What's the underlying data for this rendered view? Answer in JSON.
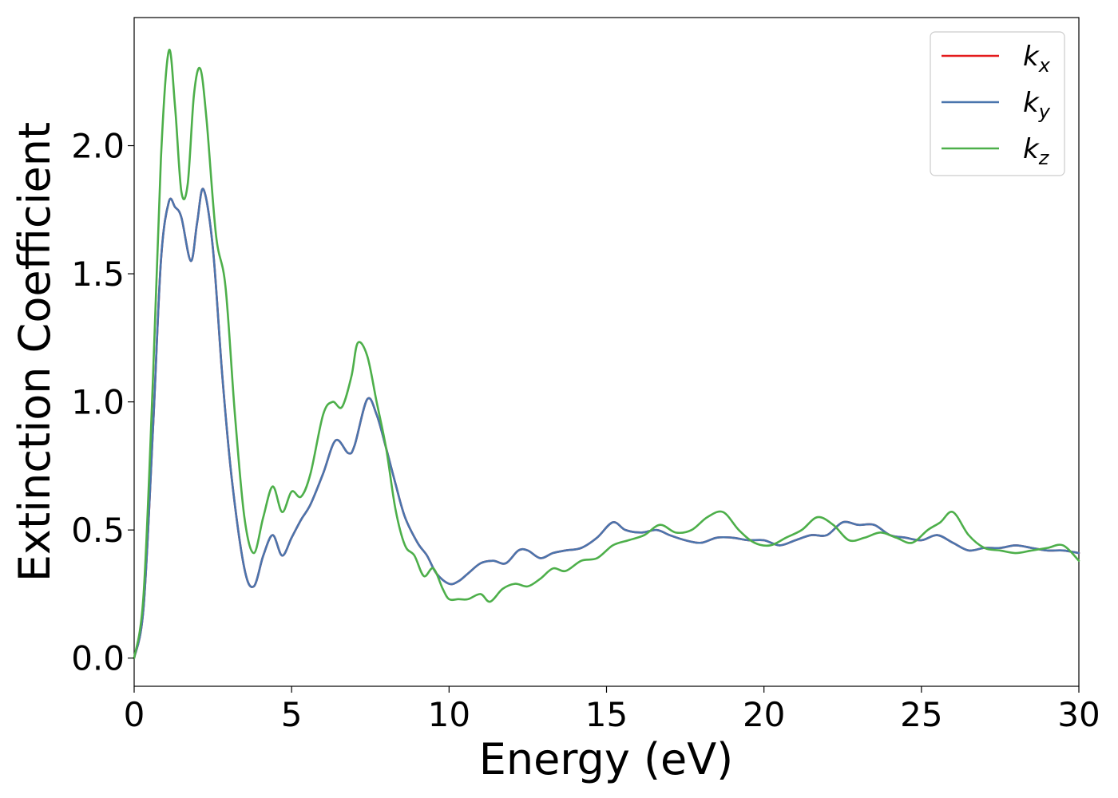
{
  "chart_data": {
    "type": "line",
    "title": "",
    "xlabel": "Energy (eV)",
    "ylabel": "Extinction Coefficient",
    "xlim": [
      0,
      30
    ],
    "ylim": [
      -0.11,
      2.5
    ],
    "xticks": [
      0,
      5,
      10,
      15,
      20,
      25,
      30
    ],
    "xtick_labels": [
      "0",
      "5",
      "10",
      "15",
      "20",
      "25",
      "30"
    ],
    "yticks": [
      0.0,
      0.5,
      1.0,
      1.5,
      2.0
    ],
    "ytick_labels": [
      "0.0",
      "0.5",
      "1.0",
      "1.5",
      "2.0"
    ],
    "grid": false,
    "legend_position": "top-right",
    "series": [
      {
        "name": "k_x",
        "label_base": "k",
        "label_sub": "x",
        "color": "#e41a1c",
        "x": [
          0,
          0.3,
          0.6,
          0.85,
          1.1,
          1.3,
          1.5,
          1.8,
          2.0,
          2.2,
          2.5,
          2.8,
          3.1,
          3.5,
          3.8,
          4.1,
          4.4,
          4.7,
          5.0,
          5.3,
          5.6,
          6.0,
          6.4,
          6.8,
          7.0,
          7.4,
          7.7,
          8.0,
          8.3,
          8.6,
          9.0,
          9.3,
          9.6,
          10.0,
          10.3,
          10.6,
          11.0,
          11.4,
          11.8,
          12.2,
          12.5,
          12.9,
          13.3,
          13.7,
          14.2,
          14.7,
          15.2,
          15.6,
          16.1,
          16.6,
          17.0,
          17.5,
          18.0,
          18.5,
          19.0,
          19.5,
          20.0,
          20.5,
          21.0,
          21.5,
          22.0,
          22.5,
          23.0,
          23.5,
          24.0,
          24.5,
          25.0,
          25.5,
          26.0,
          26.5,
          27.0,
          27.5,
          28.0,
          28.5,
          29.0,
          29.5,
          30.0
        ],
        "values": [
          0.0,
          0.2,
          0.9,
          1.55,
          1.78,
          1.76,
          1.72,
          1.55,
          1.7,
          1.83,
          1.6,
          1.1,
          0.7,
          0.35,
          0.28,
          0.4,
          0.48,
          0.4,
          0.47,
          0.54,
          0.6,
          0.72,
          0.85,
          0.8,
          0.83,
          1.01,
          0.95,
          0.82,
          0.68,
          0.55,
          0.45,
          0.4,
          0.33,
          0.29,
          0.3,
          0.33,
          0.37,
          0.38,
          0.37,
          0.42,
          0.42,
          0.39,
          0.41,
          0.42,
          0.43,
          0.47,
          0.53,
          0.5,
          0.49,
          0.5,
          0.48,
          0.46,
          0.45,
          0.47,
          0.47,
          0.46,
          0.46,
          0.44,
          0.46,
          0.48,
          0.48,
          0.53,
          0.52,
          0.52,
          0.48,
          0.47,
          0.46,
          0.48,
          0.45,
          0.42,
          0.43,
          0.43,
          0.44,
          0.43,
          0.42,
          0.42,
          0.41
        ]
      },
      {
        "name": "k_y",
        "label_base": "k",
        "label_sub": "y",
        "color": "#4a75ad",
        "x": [
          0,
          0.3,
          0.6,
          0.85,
          1.1,
          1.3,
          1.5,
          1.8,
          2.0,
          2.2,
          2.5,
          2.8,
          3.1,
          3.5,
          3.8,
          4.1,
          4.4,
          4.7,
          5.0,
          5.3,
          5.6,
          6.0,
          6.4,
          6.8,
          7.0,
          7.4,
          7.7,
          8.0,
          8.3,
          8.6,
          9.0,
          9.3,
          9.6,
          10.0,
          10.3,
          10.6,
          11.0,
          11.4,
          11.8,
          12.2,
          12.5,
          12.9,
          13.3,
          13.7,
          14.2,
          14.7,
          15.2,
          15.6,
          16.1,
          16.6,
          17.0,
          17.5,
          18.0,
          18.5,
          19.0,
          19.5,
          20.0,
          20.5,
          21.0,
          21.5,
          22.0,
          22.5,
          23.0,
          23.5,
          24.0,
          24.5,
          25.0,
          25.5,
          26.0,
          26.5,
          27.0,
          27.5,
          28.0,
          28.5,
          29.0,
          29.5,
          30.0
        ],
        "values": [
          0.0,
          0.2,
          0.9,
          1.55,
          1.78,
          1.76,
          1.72,
          1.55,
          1.7,
          1.83,
          1.6,
          1.1,
          0.7,
          0.35,
          0.28,
          0.4,
          0.48,
          0.4,
          0.47,
          0.54,
          0.6,
          0.72,
          0.85,
          0.8,
          0.83,
          1.01,
          0.95,
          0.82,
          0.68,
          0.55,
          0.45,
          0.4,
          0.33,
          0.29,
          0.3,
          0.33,
          0.37,
          0.38,
          0.37,
          0.42,
          0.42,
          0.39,
          0.41,
          0.42,
          0.43,
          0.47,
          0.53,
          0.5,
          0.49,
          0.5,
          0.48,
          0.46,
          0.45,
          0.47,
          0.47,
          0.46,
          0.46,
          0.44,
          0.46,
          0.48,
          0.48,
          0.53,
          0.52,
          0.52,
          0.48,
          0.47,
          0.46,
          0.48,
          0.45,
          0.42,
          0.43,
          0.43,
          0.44,
          0.43,
          0.42,
          0.42,
          0.41
        ]
      },
      {
        "name": "k_z",
        "label_base": "k",
        "label_sub": "z",
        "color": "#4daf4a",
        "x": [
          0,
          0.3,
          0.6,
          0.85,
          1.1,
          1.3,
          1.5,
          1.7,
          1.9,
          2.1,
          2.3,
          2.6,
          2.9,
          3.2,
          3.5,
          3.8,
          4.1,
          4.4,
          4.7,
          5.0,
          5.3,
          5.6,
          6.0,
          6.3,
          6.6,
          6.9,
          7.1,
          7.4,
          7.7,
          8.0,
          8.3,
          8.6,
          8.9,
          9.2,
          9.5,
          9.8,
          10.0,
          10.3,
          10.6,
          11.0,
          11.3,
          11.7,
          12.1,
          12.5,
          12.9,
          13.3,
          13.7,
          14.2,
          14.7,
          15.2,
          15.7,
          16.2,
          16.7,
          17.2,
          17.7,
          18.2,
          18.7,
          19.2,
          19.7,
          20.2,
          20.7,
          21.2,
          21.7,
          22.2,
          22.7,
          23.2,
          23.7,
          24.2,
          24.7,
          25.2,
          25.6,
          26.0,
          26.5,
          27.0,
          27.5,
          28.0,
          28.5,
          29.0,
          29.5,
          30.0
        ],
        "values": [
          0.0,
          0.25,
          1.1,
          1.95,
          2.37,
          2.15,
          1.82,
          1.85,
          2.2,
          2.3,
          2.1,
          1.65,
          1.45,
          0.95,
          0.55,
          0.41,
          0.55,
          0.67,
          0.57,
          0.65,
          0.63,
          0.72,
          0.95,
          1.0,
          0.98,
          1.1,
          1.23,
          1.18,
          1.0,
          0.82,
          0.58,
          0.44,
          0.4,
          0.32,
          0.35,
          0.27,
          0.23,
          0.23,
          0.23,
          0.25,
          0.22,
          0.27,
          0.29,
          0.28,
          0.31,
          0.35,
          0.34,
          0.38,
          0.39,
          0.44,
          0.46,
          0.48,
          0.52,
          0.49,
          0.5,
          0.55,
          0.57,
          0.5,
          0.45,
          0.44,
          0.47,
          0.5,
          0.55,
          0.52,
          0.46,
          0.47,
          0.49,
          0.47,
          0.45,
          0.5,
          0.53,
          0.57,
          0.48,
          0.43,
          0.42,
          0.41,
          0.42,
          0.43,
          0.44,
          0.38
        ]
      }
    ]
  }
}
